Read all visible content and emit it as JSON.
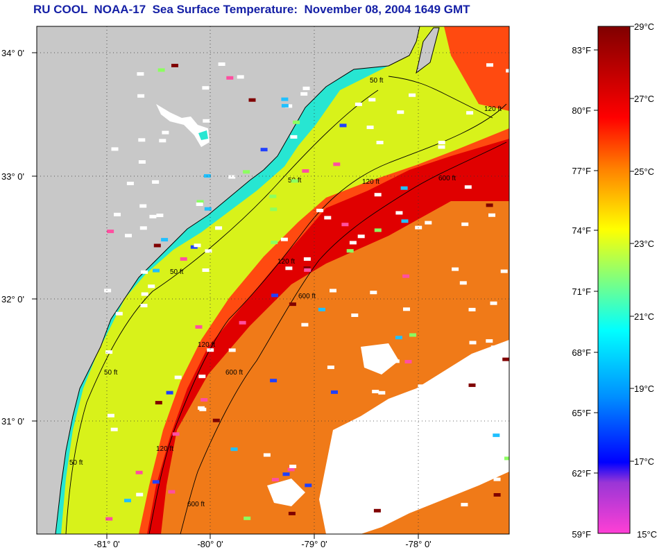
{
  "title": "RU COOL  NOAA-17  Sea Surface Temperature:  November 08, 2004 1649 GMT",
  "map": {
    "lat_labels": [
      "34° 0'",
      "33° 0'",
      "32° 0'",
      "31° 0'"
    ],
    "lon_labels": [
      "-81° 0'",
      "-80° 0'",
      "-79° 0'",
      "-78° 0'"
    ],
    "isobath_labels": [
      "50 ft",
      "50 ft",
      "50 ft",
      "50 ft",
      "50 ft",
      "120 ft",
      "120 ft",
      "120 ft",
      "120 ft",
      "120 ft",
      "600 ft",
      "600 ft",
      "600 ft",
      "600 ft"
    ],
    "colors": {
      "land": "#c8c8c8",
      "cloud": "#ffffff",
      "coastal_water": "#27e6d2",
      "shelf_water": "#d8f21a",
      "gulf_stream": "#e00000",
      "offshore": "#f07a18"
    }
  },
  "colorbar": {
    "f_labels": [
      "83°F",
      "80°F",
      "77°F",
      "74°F",
      "71°F",
      "68°F",
      "65°F",
      "62°F",
      "59°F"
    ],
    "c_labels": [
      "29°C",
      "27°C",
      "25°C",
      "23°C",
      "21°C",
      "19°C",
      "17°C",
      "15°C"
    ],
    "stops": [
      "#ff3fd5",
      "#9a36d6",
      "#0000ff",
      "#0090ff",
      "#00ffff",
      "#7fff7f",
      "#ffff00",
      "#ff8000",
      "#ff0000",
      "#800000"
    ]
  }
}
